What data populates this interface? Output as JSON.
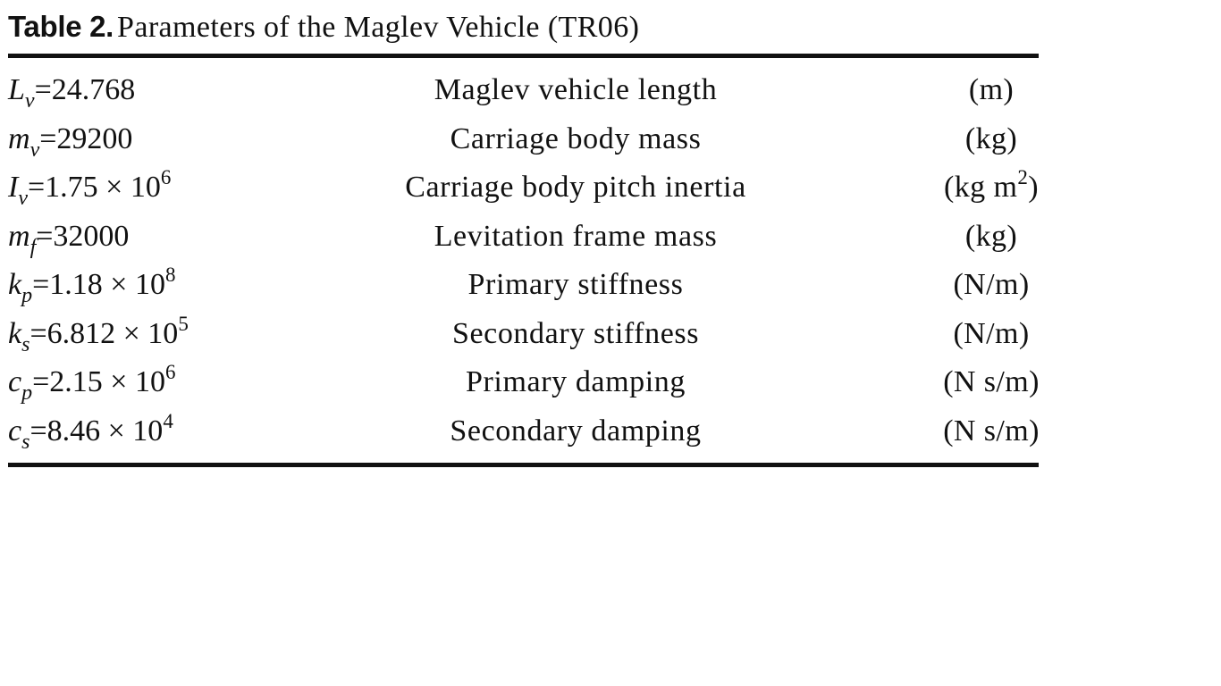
{
  "caption": {
    "label": "Table 2.",
    "text": "Parameters of the Maglev Vehicle (TR06)"
  },
  "rows": [
    {
      "var": "L",
      "sub": "v",
      "value": "24.768",
      "exp": "",
      "description": "Maglev vehicle length",
      "unit": "(m)",
      "unit_sup": "",
      "unit_tail": ""
    },
    {
      "var": "m",
      "sub": "v",
      "value": "29200",
      "exp": "",
      "description": "Carriage body mass",
      "unit": "(kg)",
      "unit_sup": "",
      "unit_tail": ""
    },
    {
      "var": "I",
      "sub": "v",
      "value": "1.75 × 10",
      "exp": "6",
      "description": "Carriage body pitch inertia",
      "unit": "(kg m",
      "unit_sup": "2",
      "unit_tail": ")"
    },
    {
      "var": "m",
      "sub": "f",
      "value": "32000",
      "exp": "",
      "description": "Levitation frame mass",
      "unit": "(kg)",
      "unit_sup": "",
      "unit_tail": ""
    },
    {
      "var": "k",
      "sub": "p",
      "value": "1.18 × 10",
      "exp": "8",
      "description": "Primary stiffness",
      "unit": "(N/m)",
      "unit_sup": "",
      "unit_tail": ""
    },
    {
      "var": "k",
      "sub": "s",
      "value": "6.812 × 10",
      "exp": "5",
      "description": "Secondary stiffness",
      "unit": "(N/m)",
      "unit_sup": "",
      "unit_tail": ""
    },
    {
      "var": "c",
      "sub": "p",
      "value": "2.15 × 10",
      "exp": "6",
      "description": "Primary damping",
      "unit": "(N s/m)",
      "unit_sup": "",
      "unit_tail": ""
    },
    {
      "var": "c",
      "sub": "s",
      "value": "8.46 × 10",
      "exp": "4",
      "description": "Secondary damping",
      "unit": "(N s/m)",
      "unit_sup": "",
      "unit_tail": ""
    }
  ]
}
